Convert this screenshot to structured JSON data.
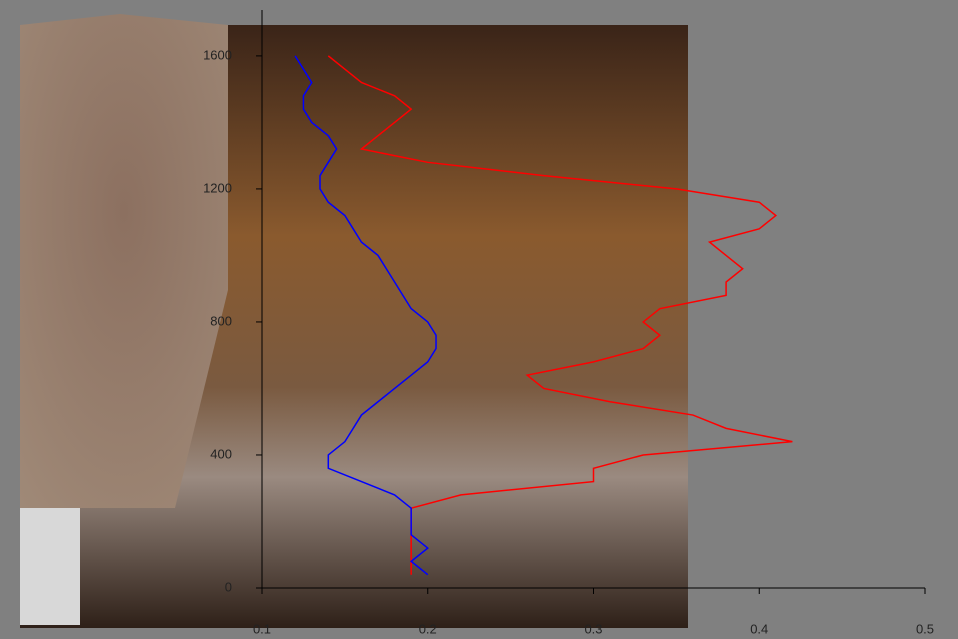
{
  "chart_data": {
    "type": "line",
    "y": [
      40,
      80,
      120,
      160,
      200,
      240,
      280,
      320,
      360,
      400,
      440,
      480,
      520,
      560,
      600,
      640,
      680,
      720,
      760,
      800,
      840,
      880,
      920,
      960,
      1000,
      1040,
      1080,
      1120,
      1160,
      1200,
      1240,
      1280,
      1320,
      1360,
      1400,
      1440,
      1480,
      1520,
      1560,
      1600
    ],
    "series": [
      {
        "color": "#ff0000",
        "values": [
          0.19,
          0.19,
          0.19,
          0.19,
          0.19,
          0.19,
          0.22,
          0.3,
          0.3,
          0.33,
          0.42,
          0.38,
          0.36,
          0.31,
          0.27,
          0.26,
          0.3,
          0.33,
          0.34,
          0.33,
          0.34,
          0.38,
          0.38,
          0.39,
          0.38,
          0.37,
          0.4,
          0.41,
          0.4,
          0.35,
          0.27,
          0.2,
          0.16,
          0.17,
          0.18,
          0.19,
          0.18,
          0.16,
          0.15,
          0.14
        ]
      },
      {
        "color": "#0000ff",
        "values": [
          0.2,
          0.19,
          0.2,
          0.19,
          0.19,
          0.19,
          0.18,
          0.16,
          0.14,
          0.14,
          0.15,
          0.155,
          0.16,
          0.17,
          0.18,
          0.19,
          0.2,
          0.205,
          0.205,
          0.2,
          0.19,
          0.185,
          0.18,
          0.175,
          0.17,
          0.16,
          0.155,
          0.15,
          0.14,
          0.135,
          0.135,
          0.14,
          0.145,
          0.14,
          0.13,
          0.125,
          0.125,
          0.13,
          0.125,
          0.12
        ]
      }
    ],
    "xlim": [
      0.1,
      0.5
    ],
    "xticks": [
      0.1,
      0.2,
      0.3,
      0.4,
      0.5
    ],
    "ylim": [
      0,
      1738
    ],
    "yticks": [
      0,
      400,
      800,
      1200,
      1600
    ]
  }
}
